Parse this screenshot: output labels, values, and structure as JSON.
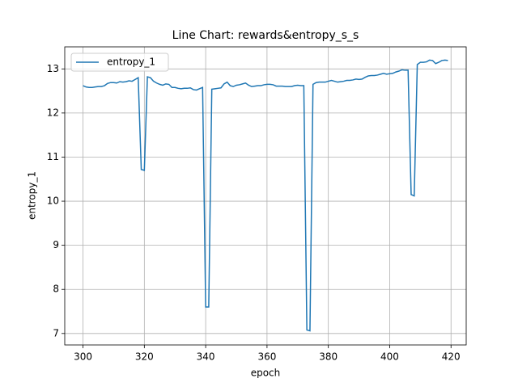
{
  "chart_data": {
    "type": "line",
    "title": "Line Chart: rewards&entropy_s_s",
    "xlabel": "epoch",
    "ylabel": "entropy_1",
    "x": [
      300,
      301,
      302,
      303,
      304,
      305,
      306,
      307,
      308,
      309,
      310,
      311,
      312,
      313,
      314,
      315,
      316,
      317,
      318,
      319,
      320,
      321,
      322,
      323,
      324,
      325,
      326,
      327,
      328,
      329,
      330,
      331,
      332,
      333,
      334,
      335,
      336,
      337,
      338,
      339,
      340,
      341,
      342,
      343,
      344,
      345,
      346,
      347,
      348,
      349,
      350,
      351,
      352,
      353,
      354,
      355,
      356,
      357,
      358,
      359,
      360,
      361,
      362,
      363,
      364,
      365,
      366,
      367,
      368,
      369,
      370,
      371,
      372,
      373,
      374,
      375,
      376,
      377,
      378,
      379,
      380,
      381,
      382,
      383,
      384,
      385,
      386,
      387,
      388,
      389,
      390,
      391,
      392,
      393,
      394,
      395,
      396,
      397,
      398,
      399,
      400,
      401,
      402,
      403,
      404,
      405,
      406,
      407,
      408,
      409,
      410,
      411,
      412,
      413,
      414,
      415,
      416,
      417,
      418,
      419
    ],
    "series": [
      {
        "name": "entropy_1",
        "color": "#1f77b4",
        "values": [
          12.62,
          12.59,
          12.58,
          12.58,
          12.59,
          12.6,
          12.6,
          12.62,
          12.67,
          12.69,
          12.69,
          12.68,
          12.71,
          12.7,
          12.71,
          12.73,
          12.72,
          12.76,
          12.8,
          10.72,
          10.7,
          12.82,
          12.8,
          12.72,
          12.68,
          12.65,
          12.63,
          12.66,
          12.65,
          12.58,
          12.58,
          12.56,
          12.55,
          12.56,
          12.56,
          12.57,
          12.53,
          12.52,
          12.55,
          12.58,
          7.6,
          7.6,
          12.54,
          12.55,
          12.56,
          12.57,
          12.66,
          12.7,
          12.62,
          12.6,
          12.63,
          12.64,
          12.66,
          12.68,
          12.63,
          12.6,
          12.61,
          12.62,
          12.62,
          12.64,
          12.65,
          12.65,
          12.64,
          12.61,
          12.61,
          12.61,
          12.6,
          12.6,
          12.6,
          12.62,
          12.63,
          12.62,
          12.62,
          7.08,
          7.06,
          12.65,
          12.69,
          12.7,
          12.7,
          12.7,
          12.72,
          12.74,
          12.72,
          12.7,
          12.71,
          12.72,
          12.74,
          12.74,
          12.75,
          12.77,
          12.76,
          12.77,
          12.81,
          12.84,
          12.85,
          12.85,
          12.86,
          12.88,
          12.9,
          12.88,
          12.89,
          12.9,
          12.93,
          12.95,
          12.98,
          12.97,
          12.97,
          10.15,
          10.12,
          13.1,
          13.15,
          13.15,
          13.16,
          13.2,
          13.19,
          13.12,
          13.15,
          13.19,
          13.2,
          13.19
        ]
      }
    ],
    "xlim": [
      294.05,
      424.95
    ],
    "ylim": [
      6.74,
      13.5
    ],
    "xticks": [
      300,
      320,
      340,
      360,
      380,
      400,
      420
    ],
    "yticks": [
      7,
      8,
      9,
      10,
      11,
      12,
      13
    ],
    "grid": true,
    "legend": "upper left"
  }
}
